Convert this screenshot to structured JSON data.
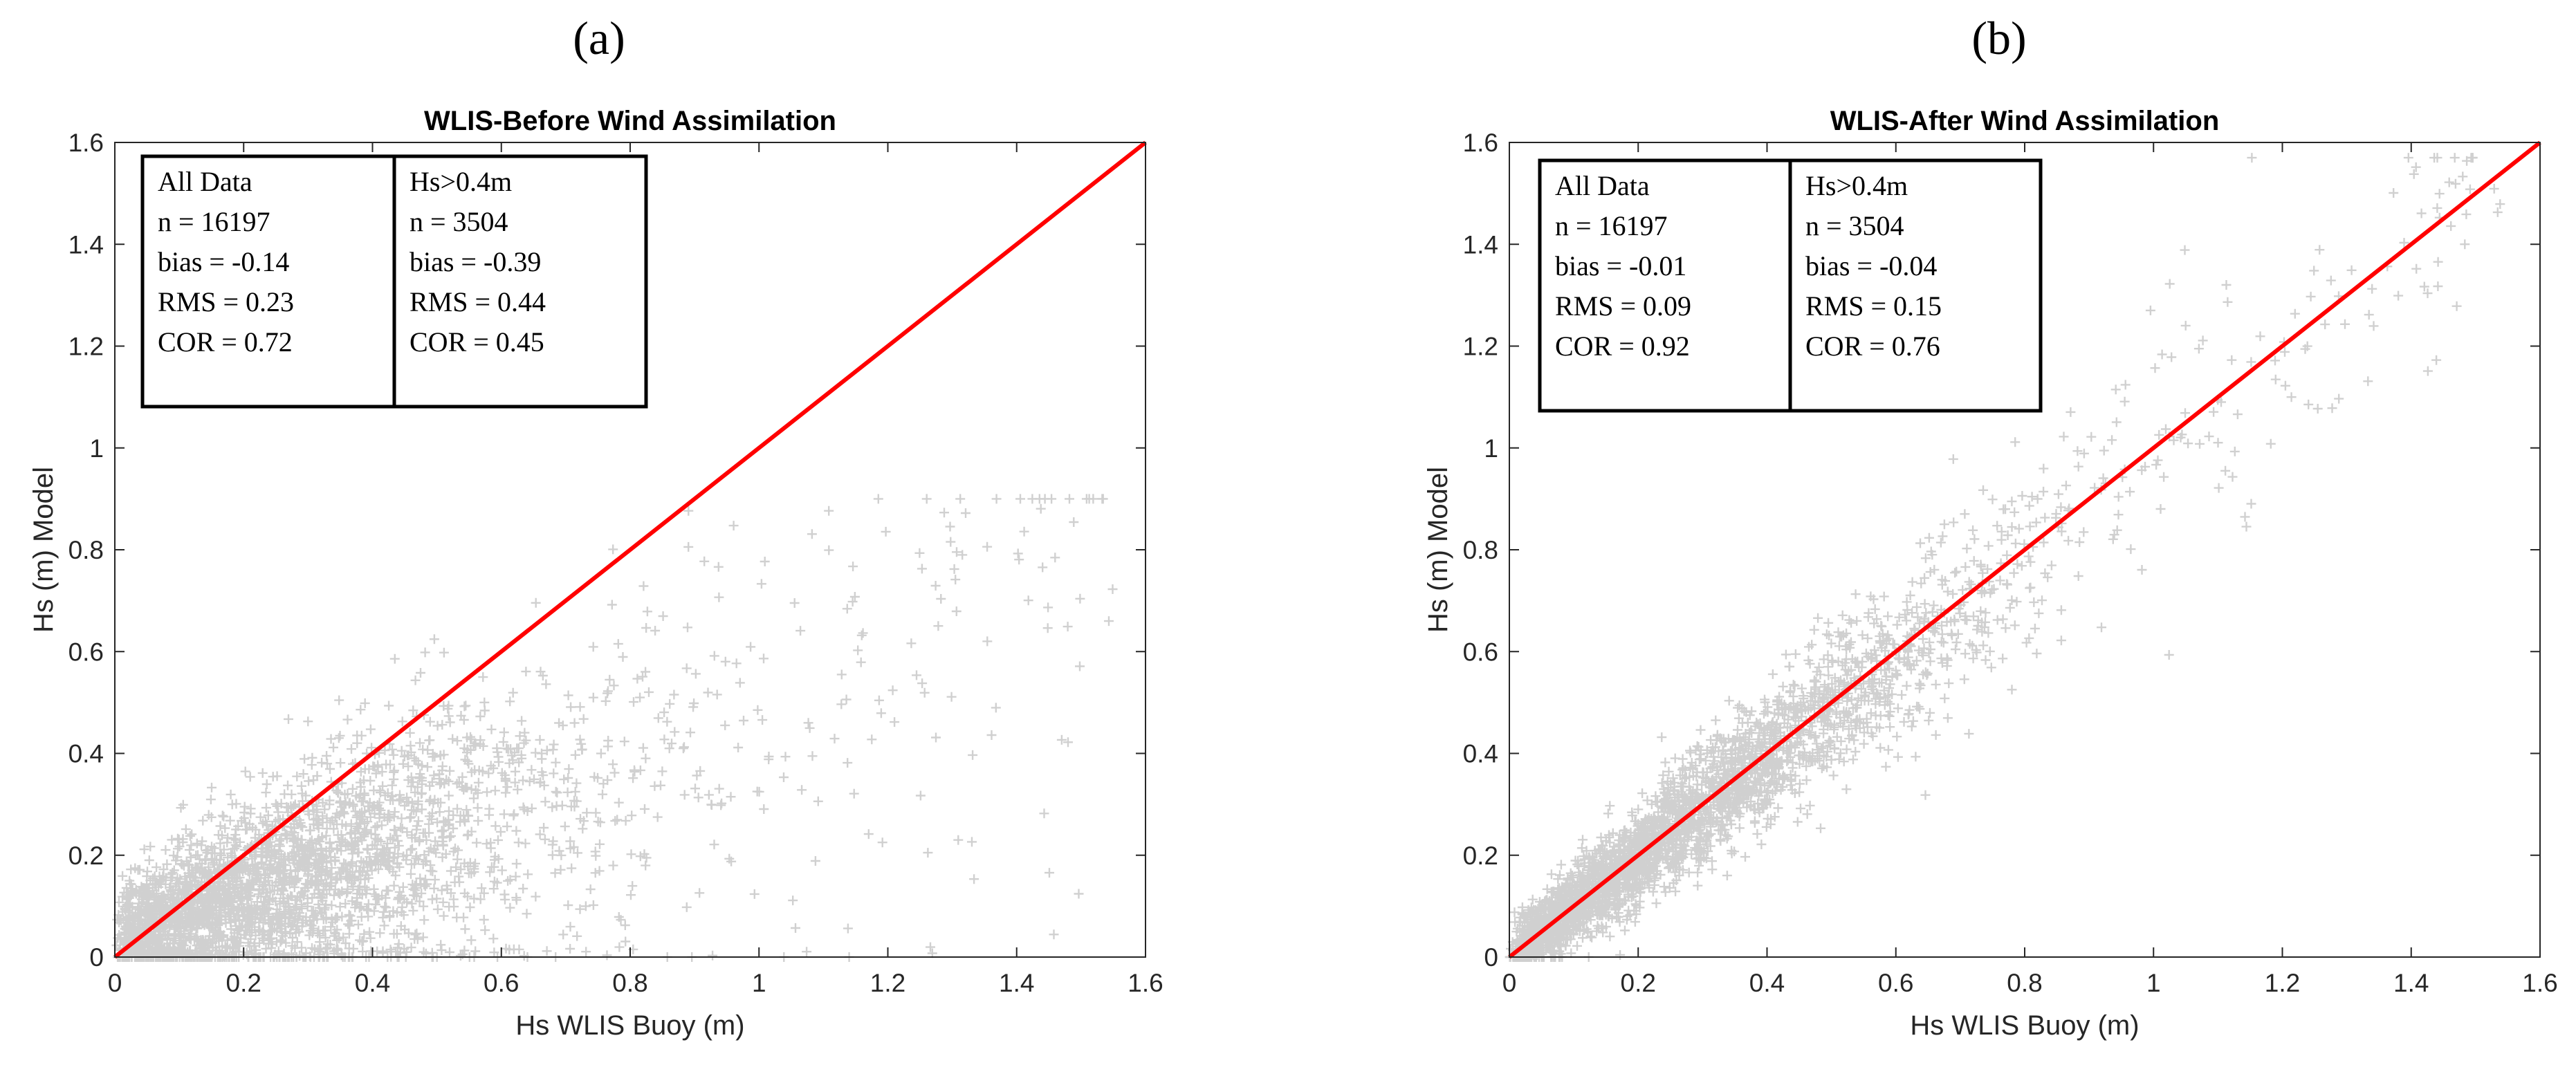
{
  "chart_data": [
    {
      "type": "scatter",
      "panel_label": "(a)",
      "title": "WLIS-Before Wind Assimilation",
      "xlabel": "Hs WLIS Buoy (m)",
      "ylabel": "Hs (m) Model",
      "xlim": [
        0,
        1.6
      ],
      "ylim": [
        0,
        1.6
      ],
      "xticks": [
        "0",
        "0.2",
        "0.4",
        "0.6",
        "0.8",
        "1",
        "1.2",
        "1.4",
        "1.6"
      ],
      "yticks": [
        "0",
        "0.2",
        "0.4",
        "0.6",
        "0.8",
        "1",
        "1.2",
        "1.4",
        "1.6"
      ],
      "reference_line": {
        "from": [
          0,
          0
        ],
        "to": [
          1.6,
          1.6
        ],
        "color": "#ff0000"
      },
      "marker": "+",
      "marker_color": "#d0d0d0",
      "scatter_model": {
        "n": 16197,
        "bias": -0.14,
        "rms": 0.23,
        "cor": 0.72,
        "slope": 0.45,
        "max_x": 1.55,
        "max_y": 0.9
      },
      "stats": [
        [
          "All Data",
          "n = 16197",
          "bias = -0.14",
          "RMS = 0.23",
          "COR = 0.72"
        ],
        [
          "Hs>0.4m",
          "n = 3504",
          "bias = -0.39",
          "RMS = 0.44",
          "COR = 0.45"
        ]
      ]
    },
    {
      "type": "scatter",
      "panel_label": "(b)",
      "title": "WLIS-After Wind Assimilation",
      "xlabel": "Hs WLIS Buoy (m)",
      "ylabel": "Hs (m) Model",
      "xlim": [
        0,
        1.6
      ],
      "ylim": [
        0,
        1.6
      ],
      "xticks": [
        "0",
        "0.2",
        "0.4",
        "0.6",
        "0.8",
        "1",
        "1.2",
        "1.4",
        "1.6"
      ],
      "yticks": [
        "0",
        "0.2",
        "0.4",
        "0.6",
        "0.8",
        "1",
        "1.2",
        "1.4",
        "1.6"
      ],
      "reference_line": {
        "from": [
          0,
          0
        ],
        "to": [
          1.6,
          1.6
        ],
        "color": "#ff0000"
      },
      "marker": "+",
      "marker_color": "#d0d0d0",
      "scatter_model": {
        "n": 16197,
        "bias": -0.01,
        "rms": 0.09,
        "cor": 0.92,
        "slope": 0.98,
        "max_x": 1.55,
        "max_y": 1.57
      },
      "stats": [
        [
          "All Data",
          "n = 16197",
          "bias = -0.01",
          "RMS = 0.09",
          "COR = 0.92"
        ],
        [
          "Hs>0.4m",
          "n = 3504",
          "bias = -0.04",
          "RMS = 0.15",
          "COR = 0.76"
        ]
      ]
    }
  ]
}
